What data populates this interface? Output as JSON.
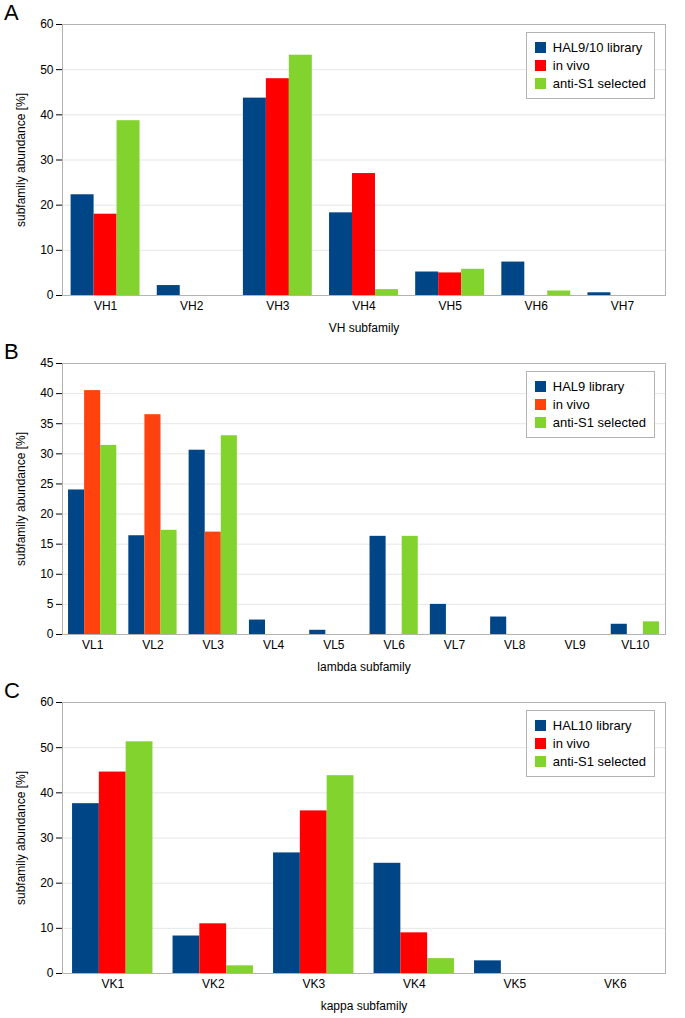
{
  "chart_data": [
    {
      "type": "bar",
      "title": "A",
      "x_label": "VH subfamily",
      "y_label": "subfamily abundance [%]",
      "categories": [
        "VH1",
        "VH2",
        "VH3",
        "VH4",
        "VH5",
        "VH6",
        "VH7"
      ],
      "series": [
        {
          "name": "HAL9/10 library",
          "color": "#004586",
          "values": [
            22.3,
            2.2,
            43.7,
            18.3,
            5.2,
            7.4,
            0.6
          ]
        },
        {
          "name": "in vivo",
          "color": "#ff0000",
          "values": [
            18,
            0,
            48,
            27,
            5,
            0,
            0
          ]
        },
        {
          "name": "anti-S1 selected",
          "color": "#83d32f",
          "values": [
            38.7,
            0,
            53.2,
            1.3,
            5.8,
            1.0,
            0
          ]
        }
      ],
      "ylim": [
        0,
        60
      ],
      "yticks": [
        0,
        10,
        20,
        30,
        40,
        50,
        60
      ],
      "grid": true,
      "legend": "top-right"
    },
    {
      "type": "bar",
      "title": "B",
      "x_label": "lambda subfamily",
      "y_label": "subfamily abundance [%]",
      "categories": [
        "VL1",
        "VL2",
        "VL3",
        "VL4",
        "VL5",
        "VL6",
        "VL7",
        "VL8",
        "VL9",
        "VL10"
      ],
      "series": [
        {
          "name": "HAL9 library",
          "color": "#004586",
          "values": [
            24,
            16.4,
            30.6,
            2.4,
            0.7,
            16.3,
            5,
            2.9,
            0,
            1.7
          ]
        },
        {
          "name": "in vivo",
          "color": "#ff420e",
          "values": [
            40.5,
            36.5,
            17,
            0,
            0,
            0,
            0,
            0,
            0,
            0
          ]
        },
        {
          "name": "anti-S1 selected",
          "color": "#83d32f",
          "values": [
            31.4,
            17.3,
            33,
            0,
            0,
            16.3,
            0,
            0,
            0,
            2.1
          ]
        }
      ],
      "ylim": [
        0,
        45
      ],
      "yticks": [
        0,
        5,
        10,
        15,
        20,
        25,
        30,
        35,
        40,
        45
      ],
      "grid": true,
      "legend": "top-right"
    },
    {
      "type": "bar",
      "title": "C",
      "x_label": "kappa subfamily",
      "y_label": "subfamily abundance [%]",
      "categories": [
        "VK1",
        "VK2",
        "VK3",
        "VK4",
        "VK5",
        "VK6"
      ],
      "series": [
        {
          "name": "HAL10 library",
          "color": "#004586",
          "values": [
            37.6,
            8.3,
            26.7,
            24.4,
            2.8,
            0
          ]
        },
        {
          "name": "in vivo",
          "color": "#ff0000",
          "values": [
            44.6,
            11,
            36,
            9,
            0,
            0
          ]
        },
        {
          "name": "anti-S1 selected",
          "color": "#83d32f",
          "values": [
            51.3,
            1.7,
            43.8,
            3.3,
            0,
            0
          ]
        }
      ],
      "ylim": [
        0,
        60
      ],
      "yticks": [
        0,
        10,
        20,
        30,
        40,
        50,
        60
      ],
      "grid": true,
      "legend": "top-right"
    }
  ]
}
